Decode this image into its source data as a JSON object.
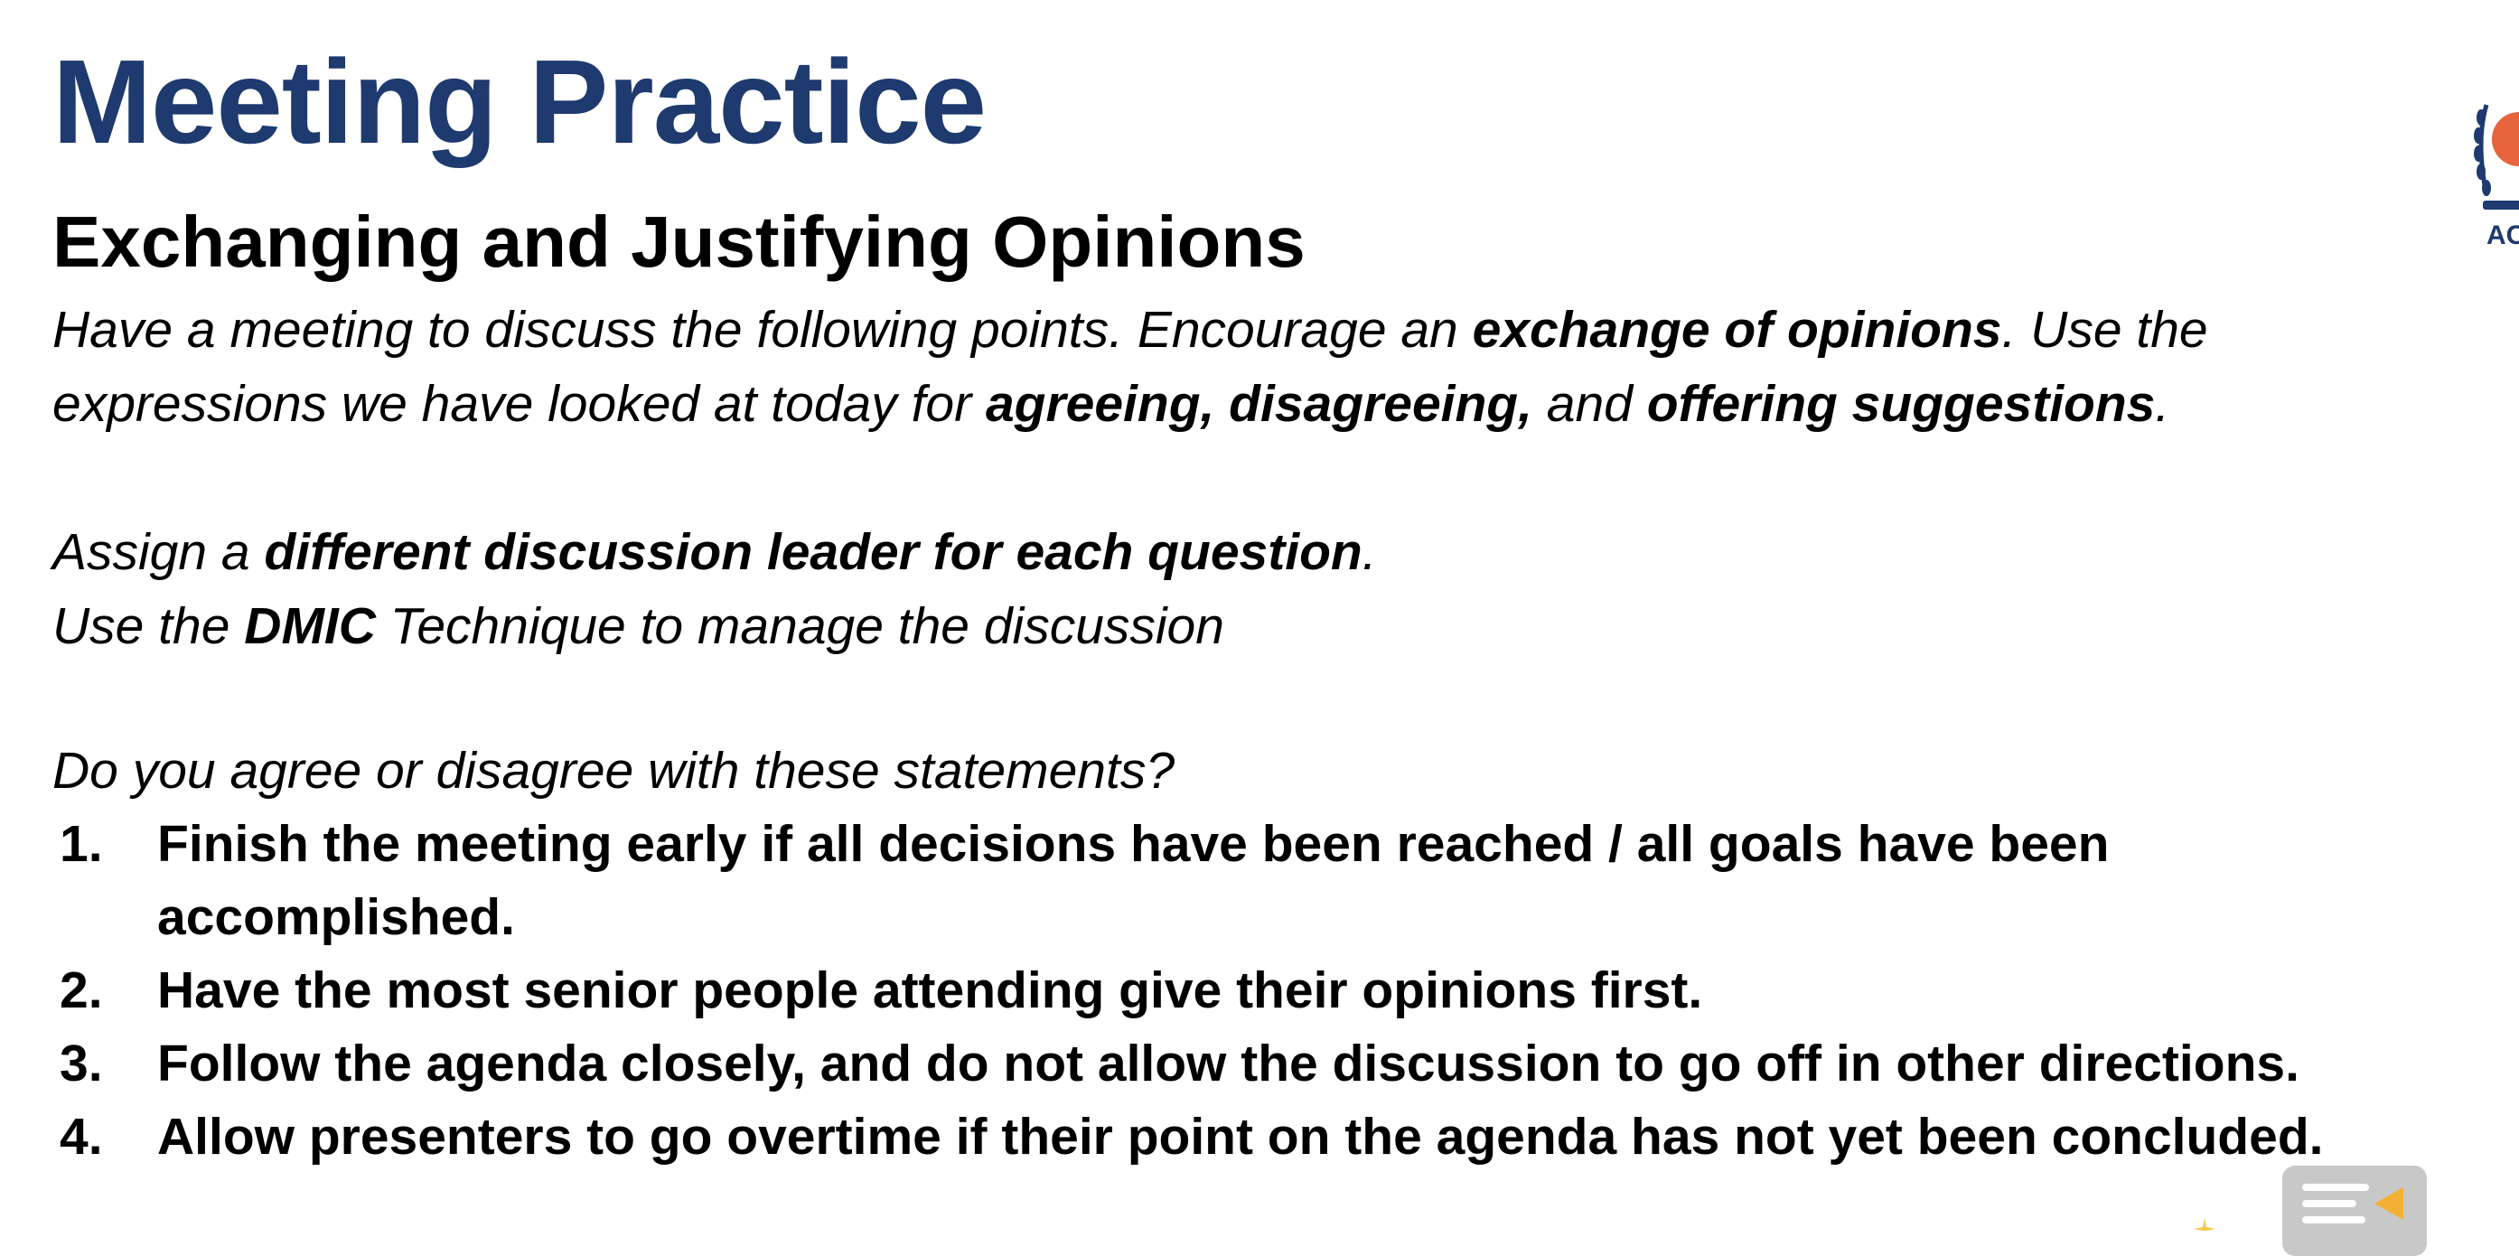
{
  "slide": {
    "title": "Meeting Practice",
    "subtitle": "Exchanging and Justifying Opinions",
    "intro": {
      "line1_start": "Have a meeting to discuss the following points. Encourage an ",
      "line1_bold": "exchange of opinions",
      "line1_end": ". Use the",
      "line2_start": "expressions we have looked at today for ",
      "line2_bold1": "agreeing, disagreeing,",
      "line2_mid": " and ",
      "line2_bold2": "offering suggestions",
      "line2_end": "."
    },
    "leader": {
      "line1_start": "Assign a ",
      "line1_bold": "different discussion leader for each question",
      "line1_end": ".",
      "line2_start": "Use the ",
      "line2_bold": "DMIC",
      "line2_end": " Technique to manage the discussion"
    },
    "question": "Do you agree or disagree with these statements?",
    "statements": [
      {
        "num": "1.",
        "lines": [
          "Finish the meeting early if all decisions have been reached / all goals have been",
          "accomplished."
        ]
      },
      {
        "num": "2.",
        "lines": [
          "Have the most senior people attending give their opinions first."
        ]
      },
      {
        "num": "3.",
        "lines": [
          "Follow the agenda closely, and do not allow the discussion to go off in other directions."
        ]
      },
      {
        "num": "4.",
        "lines": [
          "Allow presenters to go overtime if their point on the agenda has not yet been concluded."
        ]
      }
    ]
  },
  "logo": {
    "text": "AC",
    "icon": "laurel-logo-icon"
  },
  "controls": {
    "notes_icon": "speaker-notes-icon"
  },
  "colors": {
    "title": "#1e3a6e",
    "text": "#000000",
    "logo_accent": "#e8643c",
    "logo_dark": "#1e3a6e",
    "notes_button": "#c8c8c8",
    "notes_arrow": "#f2b134",
    "spark": "#f2c94c"
  }
}
